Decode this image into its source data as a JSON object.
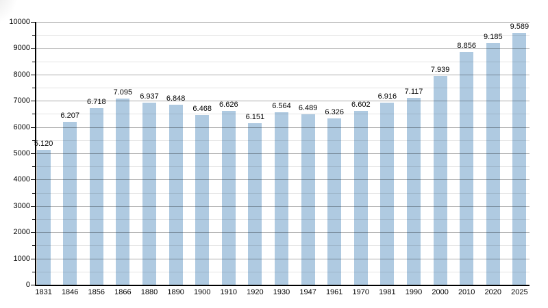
{
  "chart_data": {
    "type": "bar",
    "title": "",
    "xlabel": "",
    "ylabel": "",
    "categories": [
      "1831",
      "1846",
      "1856",
      "1866",
      "1880",
      "1890",
      "1900",
      "1910",
      "1920",
      "1930",
      "1947",
      "1961",
      "1970",
      "1981",
      "1990",
      "2000",
      "2010",
      "2020",
      "2025"
    ],
    "values": [
      5120,
      6207,
      6718,
      7095,
      6937,
      6848,
      6468,
      6626,
      6151,
      6564,
      6489,
      6326,
      6602,
      6916,
      7117,
      7939,
      8856,
      9185,
      9589
    ],
    "bar_labels": [
      "5.120",
      "6.207",
      "6.718",
      "7.095",
      "6.937",
      "6.848",
      "6.468",
      "6.626",
      "6.151",
      "6.564",
      "6.489",
      "6.326",
      "6.602",
      "6.916",
      "7.117",
      "7.939",
      "8.856",
      "9.185",
      "9.589"
    ],
    "ylim": [
      0,
      10000
    ],
    "ytick_major_step": 1000,
    "ytick_minor_step": 500,
    "ytick_labels": [
      "0",
      "1000",
      "2000",
      "3000",
      "4000",
      "5000",
      "6000",
      "7000",
      "8000",
      "9000",
      "10000"
    ],
    "grid": "horizontal major+minor, drawn over bars",
    "legend": "none",
    "colors": {
      "bar": "#afcae1",
      "grid_major": "#a9a9a9",
      "grid_minor": "#e3e3e3",
      "axis": "#000000",
      "text": "#000000",
      "background": "#ffffff"
    }
  }
}
